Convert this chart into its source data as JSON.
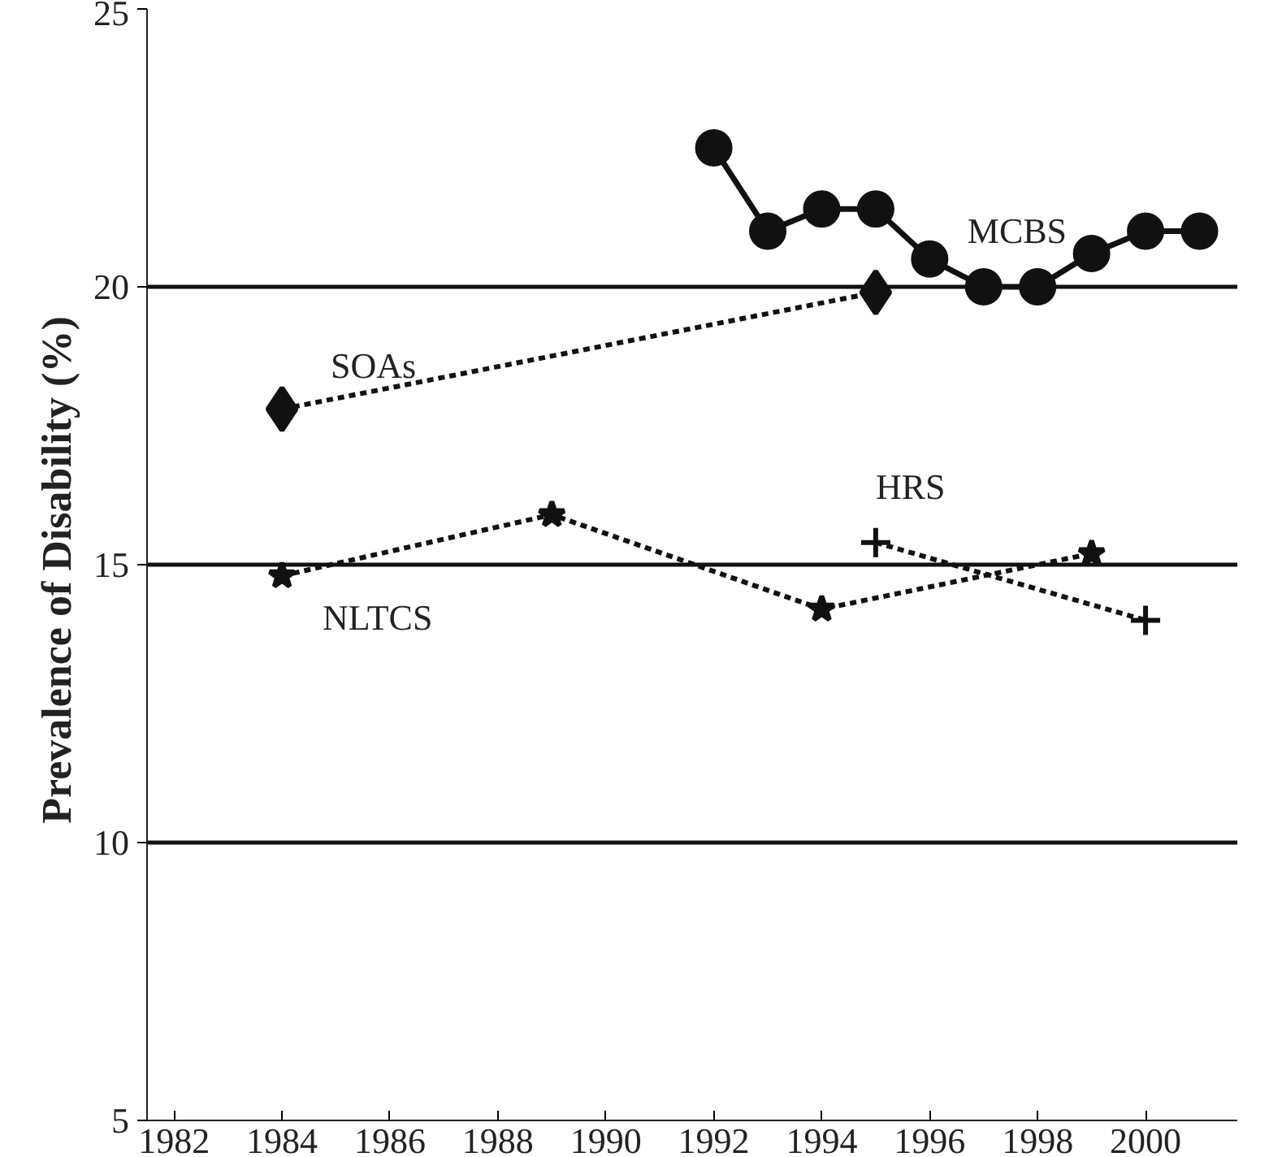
{
  "chart_data": {
    "type": "line",
    "ylabel": "Prevalence of Disability  (%)",
    "xlim": [
      1981.5,
      2001.7
    ],
    "xticks": [
      1982,
      1984,
      1986,
      1988,
      1990,
      1992,
      1994,
      1996,
      1998,
      2000
    ],
    "ylim": [
      5,
      25
    ],
    "yticks": [
      5,
      10,
      15,
      20,
      25
    ],
    "grid": "y",
    "series": [
      {
        "name": "MCBS",
        "color": "#111111",
        "marker": "circle",
        "line_style": "solid",
        "x": [
          1992,
          1993,
          1994,
          1995,
          1996,
          1997,
          1998,
          1999,
          2000,
          2001
        ],
        "values": [
          22.5,
          21.0,
          21.4,
          21.4,
          20.5,
          20.0,
          20.0,
          20.6,
          21.0,
          21.0
        ]
      },
      {
        "name": "SOAs",
        "color": "#111111",
        "marker": "diamond",
        "line_style": "dotted",
        "x": [
          1984,
          1995
        ],
        "values": [
          17.8,
          19.9
        ]
      },
      {
        "name": "HRS",
        "color": "#111111",
        "marker": "cross",
        "line_style": "dotted",
        "x": [
          1995,
          2000
        ],
        "values": [
          15.4,
          14.0
        ]
      },
      {
        "name": "NLTCS",
        "color": "#111111",
        "marker": "star",
        "line_style": "dotted",
        "x": [
          1984,
          1989,
          1994,
          1999
        ],
        "values": [
          14.8,
          15.9,
          14.2,
          15.2
        ]
      }
    ]
  }
}
